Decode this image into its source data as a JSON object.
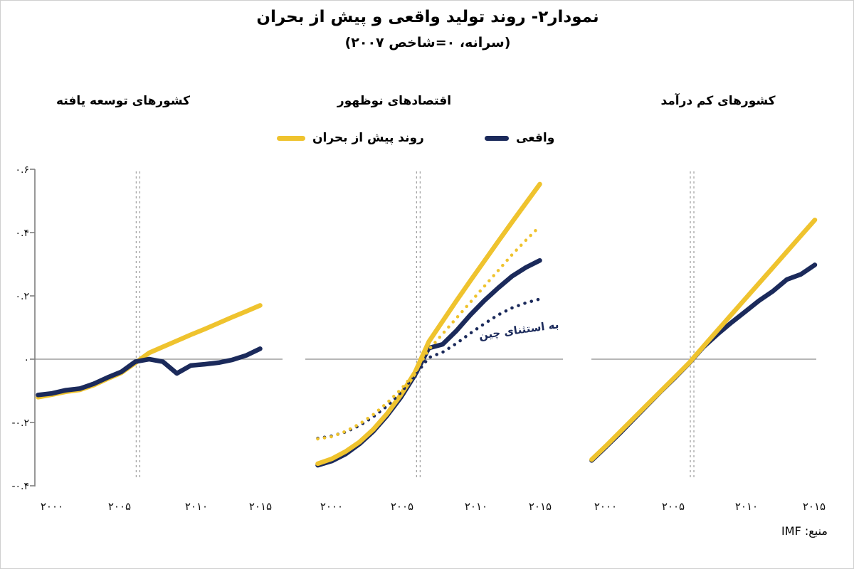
{
  "page": {
    "title": "نمودار۲- روند تولید واقعی و پیش از بحران",
    "subtitle": "(سرانه، ۰=شاخص ۲۰۰۷)",
    "source_label": "منبع: IMF"
  },
  "legend": {
    "trend_label": "روند پیش از بحران",
    "actual_label": "واقعی"
  },
  "colors": {
    "trend": "#efc32e",
    "actual": "#1b2a5b",
    "zero_line": "#8c8c8c",
    "axis": "#7f7f7f",
    "crisis_line": "#a3a3a3",
    "text": "#000000"
  },
  "axis": {
    "y_ticks": [
      "۰.۶",
      "۰.۴",
      "۰.۲",
      "۰",
      "-۰.۲",
      "-۰.۴"
    ],
    "y_values": [
      0.6,
      0.4,
      0.2,
      0,
      -0.2,
      -0.4
    ],
    "x_ticks": [
      "۲۰۰۰",
      "۲۰۰۵",
      "۲۰۱۰",
      "۲۰۱۵"
    ],
    "x_values": [
      2000,
      2005,
      2010,
      2015
    ],
    "ylim": [
      -0.4,
      0.6
    ]
  },
  "chart_data": [
    {
      "type": "line",
      "id": "advanced",
      "title": "کشورهای توسعه یافته",
      "crisis_line_year": 2006.2,
      "x": [
        1999,
        2000,
        2001,
        2002,
        2003,
        2004,
        2005,
        2006,
        2007,
        2008,
        2009,
        2010,
        2011,
        2012,
        2013,
        2014,
        2015
      ],
      "series": [
        {
          "id": "trend",
          "label": "روند پیش از بحران",
          "style": "solid",
          "color": "trend",
          "values": [
            -0.12,
            -0.112,
            -0.103,
            -0.097,
            -0.082,
            -0.062,
            -0.043,
            -0.012,
            0.02,
            0.039,
            0.058,
            0.077,
            0.095,
            0.114,
            0.133,
            0.151,
            0.17
          ]
        },
        {
          "id": "actual",
          "label": "واقعی",
          "style": "solid",
          "color": "actual",
          "values": [
            -0.113,
            -0.108,
            -0.098,
            -0.093,
            -0.078,
            -0.058,
            -0.04,
            -0.008,
            0.0,
            -0.008,
            -0.045,
            -0.02,
            -0.016,
            -0.011,
            -0.002,
            0.012,
            0.033
          ]
        }
      ]
    },
    {
      "type": "line",
      "id": "emerging",
      "title": "اقتصادهای نوظهور",
      "annotation": "به استثنای چین",
      "crisis_line_year": 2006.25,
      "x": [
        1999,
        2000,
        2001,
        2002,
        2003,
        2004,
        2005,
        2006,
        2007,
        2008,
        2009,
        2010,
        2011,
        2012,
        2013,
        2014,
        2015
      ],
      "series": [
        {
          "id": "actual",
          "label": "واقعی",
          "style": "solid",
          "color": "actual",
          "values": [
            -0.335,
            -0.322,
            -0.3,
            -0.268,
            -0.228,
            -0.178,
            -0.12,
            -0.05,
            0.035,
            0.047,
            0.09,
            0.14,
            0.185,
            0.225,
            0.262,
            0.29,
            0.312
          ]
        },
        {
          "id": "trend",
          "label": "روند پیش از بحران",
          "style": "solid",
          "color": "trend",
          "values": [
            -0.33,
            -0.315,
            -0.292,
            -0.262,
            -0.222,
            -0.172,
            -0.112,
            -0.042,
            0.055,
            0.12,
            0.185,
            0.248,
            0.31,
            0.372,
            0.433,
            0.493,
            0.553
          ]
        },
        {
          "id": "actual-ex-china",
          "label": "به استثنای چین",
          "style": "dotted",
          "color": "actual",
          "values": [
            -0.25,
            -0.243,
            -0.23,
            -0.21,
            -0.182,
            -0.148,
            -0.105,
            -0.052,
            0.005,
            0.022,
            0.05,
            0.082,
            0.112,
            0.14,
            0.162,
            0.178,
            0.19
          ]
        },
        {
          "id": "trend-ex-china",
          "label": "به استثنای چین",
          "style": "dotted",
          "color": "trend",
          "values": [
            -0.252,
            -0.245,
            -0.228,
            -0.205,
            -0.175,
            -0.138,
            -0.095,
            -0.042,
            0.03,
            0.08,
            0.13,
            0.18,
            0.23,
            0.28,
            0.33,
            0.376,
            0.42
          ]
        }
      ]
    },
    {
      "type": "line",
      "id": "low-income",
      "title": "کشورهای کم درآمد",
      "crisis_line_year": 2006.2,
      "x": [
        1999,
        2000,
        2001,
        2002,
        2003,
        2004,
        2005,
        2006,
        2007,
        2008,
        2009,
        2010,
        2011,
        2012,
        2013,
        2014,
        2015
      ],
      "series": [
        {
          "id": "actual",
          "label": "واقعی",
          "style": "solid",
          "color": "actual",
          "values": [
            -0.32,
            -0.278,
            -0.235,
            -0.19,
            -0.145,
            -0.1,
            -0.057,
            -0.012,
            0.038,
            0.078,
            0.115,
            0.15,
            0.185,
            0.215,
            0.252,
            0.268,
            0.298
          ]
        },
        {
          "id": "trend",
          "label": "روند پیش از بحران",
          "style": "solid",
          "color": "trend",
          "values": [
            -0.317,
            -0.275,
            -0.231,
            -0.187,
            -0.143,
            -0.099,
            -0.055,
            -0.011,
            0.04,
            0.09,
            0.14,
            0.19,
            0.24,
            0.29,
            0.34,
            0.39,
            0.44
          ]
        }
      ]
    }
  ]
}
